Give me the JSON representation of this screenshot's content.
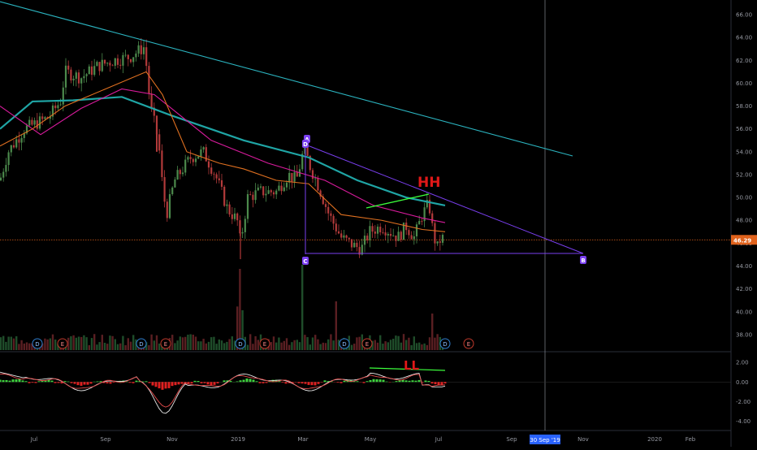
{
  "colors": {
    "background": "#000000",
    "up": "#4c8a4c",
    "down": "#b23a3a",
    "trend": "#2bb3bf",
    "ma_teal": "#1fa5a5",
    "ma_magenta": "#d81b9c",
    "ma_orange": "#e07020",
    "abcd": "#7a3ff0",
    "price_line": "#e0621c",
    "annot_red": "#e01818",
    "annot_green": "#3cff3c",
    "macd": "#e8e8e8",
    "signal": "#e24b4b",
    "hist_up": "#3fd23f",
    "hist_down": "#e02020"
  },
  "price_axis": {
    "ticks": [
      "66.00",
      "64.00",
      "62.00",
      "60.00",
      "58.00",
      "56.00",
      "54.00",
      "52.00",
      "50.00",
      "48.00",
      "46.00",
      "44.00",
      "42.00",
      "40.00",
      "38.00"
    ],
    "current_price_label": "46.29"
  },
  "osc_axis": {
    "ticks": [
      "2.00",
      "0.00",
      "-2.00",
      "-4.00"
    ]
  },
  "time_axis": {
    "labels": [
      "Jul",
      "Sep",
      "Nov",
      "2019",
      "Mar",
      "May",
      "Jul",
      "Sep",
      "Nov",
      "2020",
      "Feb"
    ],
    "crosshair_label": "30 Sep '19"
  },
  "annotations": {
    "hh": "HH",
    "ll": "LL",
    "point_a": "A",
    "point_b": "B",
    "point_c": "C",
    "point_d": "D"
  },
  "event_markers": [
    "D",
    "E",
    "D",
    "E",
    "D",
    "E",
    "D",
    "E",
    "D",
    "E"
  ],
  "chart_data": {
    "type": "candlestick",
    "title": "",
    "ylim": [
      36.5,
      66.5
    ],
    "x_range": [
      "2018-06",
      "2020-02"
    ],
    "close_series": [
      {
        "date": "2018-06",
        "close": 51.5
      },
      {
        "date": "2018-07",
        "close": 56.5
      },
      {
        "date": "2018-08",
        "close": 60.5
      },
      {
        "date": "2018-09",
        "close": 62.5
      },
      {
        "date": "2018-10",
        "close": 55.0
      },
      {
        "date": "2018-11",
        "close": 51.0
      },
      {
        "date": "2018-12",
        "close": 50.5
      },
      {
        "date": "2019-01",
        "close": 48.5
      },
      {
        "date": "2019-02",
        "close": 52.0
      },
      {
        "date": "2019-03",
        "close": 51.0
      },
      {
        "date": "2019-04",
        "close": 45.5
      },
      {
        "date": "2019-05",
        "close": 47.5
      },
      {
        "date": "2019-06",
        "close": 48.5
      },
      {
        "date": "2019-07",
        "close": 46.29
      }
    ],
    "moving_averages": [
      {
        "name": "ma_teal",
        "points": [
          [
            0,
            56
          ],
          [
            40,
            58.4
          ],
          [
            90,
            58.5
          ],
          [
            150,
            58.8
          ],
          [
            210,
            57.2
          ],
          [
            300,
            55.0
          ],
          [
            380,
            53.5
          ],
          [
            440,
            51.5
          ],
          [
            500,
            50.0
          ],
          [
            548,
            49.3
          ]
        ]
      },
      {
        "name": "ma_magenta",
        "points": [
          [
            0,
            58
          ],
          [
            50,
            55.5
          ],
          [
            100,
            57.8
          ],
          [
            150,
            59.5
          ],
          [
            190,
            59.0
          ],
          [
            260,
            55.0
          ],
          [
            330,
            53.0
          ],
          [
            400,
            51.5
          ],
          [
            460,
            49.3
          ],
          [
            520,
            48.2
          ],
          [
            548,
            47.8
          ]
        ]
      },
      {
        "name": "ma_orange",
        "points": [
          [
            0,
            54.5
          ],
          [
            40,
            56
          ],
          [
            80,
            58
          ],
          [
            130,
            59.5
          ],
          [
            180,
            61
          ],
          [
            200,
            59
          ],
          [
            230,
            54
          ],
          [
            270,
            53
          ],
          [
            300,
            52.5
          ],
          [
            340,
            51.5
          ],
          [
            380,
            51.2
          ],
          [
            420,
            48.5
          ],
          [
            470,
            48
          ],
          [
            520,
            47.2
          ],
          [
            548,
            47
          ]
        ]
      }
    ],
    "current_price": 46.29,
    "volume_range": [
      0,
      100
    ],
    "oscillator": {
      "ylim": [
        -4.6,
        2.5
      ],
      "zero": 0.0
    }
  }
}
